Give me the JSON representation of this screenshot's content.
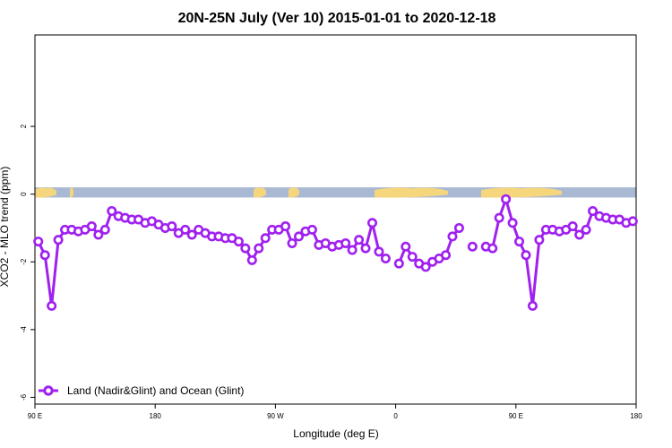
{
  "colors": {
    "series": "#a020f0",
    "ocean_band": "#a9b9d3",
    "land_band": "#f5d67c",
    "frame": "#000000"
  },
  "chart_data": {
    "type": "line",
    "title": "20N-25N July (Ver 10)   2015-01-01 to 2020-12-18",
    "xlabel": "Longitude (deg E)",
    "ylabel": "XCO2 - MLO trend (ppm)",
    "xlim": [
      90,
      450
    ],
    "ylim": [
      -6.2,
      4.7
    ],
    "x_ticks": [
      90,
      180,
      270,
      360,
      450
    ],
    "x_tick_labels": [
      "90 E",
      "180",
      "90 W",
      "0",
      "90 E",
      "180"
    ],
    "x_tick_values": [
      90,
      180,
      270,
      360,
      450,
      540
    ],
    "y_ticks": [
      2,
      0,
      -2,
      -4,
      -6
    ],
    "y_tick_labels": [
      "2",
      "0",
      "-2",
      "-4",
      "-6"
    ],
    "grid": false,
    "legend_position": "bottom-left",
    "background_band": {
      "y_from": 0.2,
      "y_to": -0.1,
      "note_ocean_land_map": true
    },
    "series": [
      {
        "name": "Land (Nadir&Glint) and Ocean (Glint)",
        "points": [
          [
            92.5,
            -1.4
          ],
          [
            97.5,
            -1.8
          ],
          [
            102.5,
            -3.3
          ],
          [
            107.5,
            -1.35
          ],
          [
            112.5,
            -1.05
          ],
          [
            117.5,
            -1.05
          ],
          [
            122.5,
            -1.1
          ],
          [
            127.5,
            -1.05
          ],
          [
            132.5,
            -0.95
          ],
          [
            137.5,
            -1.2
          ],
          [
            142.5,
            -1.05
          ],
          [
            147.5,
            -0.5
          ],
          [
            152.5,
            -0.65
          ],
          [
            157.5,
            -0.7
          ],
          [
            162.5,
            -0.75
          ],
          [
            167.5,
            -0.75
          ],
          [
            172.5,
            -0.85
          ],
          [
            177.5,
            -0.8
          ],
          [
            182.5,
            -0.9
          ],
          [
            187.5,
            -1.0
          ],
          [
            192.5,
            -0.95
          ],
          [
            197.5,
            -1.15
          ],
          [
            202.5,
            -1.05
          ],
          [
            207.5,
            -1.2
          ],
          [
            212.5,
            -1.05
          ],
          [
            217.5,
            -1.15
          ],
          [
            222.5,
            -1.25
          ],
          [
            227.5,
            -1.25
          ],
          [
            232.5,
            -1.3
          ],
          [
            237.5,
            -1.3
          ],
          [
            242.5,
            -1.4
          ],
          [
            247.5,
            -1.6
          ],
          [
            252.5,
            -1.95
          ],
          [
            257.5,
            -1.6
          ],
          [
            262.5,
            -1.3
          ],
          [
            267.5,
            -1.05
          ],
          [
            272.5,
            -1.05
          ],
          [
            277.5,
            -0.95
          ],
          [
            282.5,
            -1.45
          ],
          [
            287.5,
            -1.25
          ],
          [
            292.5,
            -1.1
          ],
          [
            297.5,
            -1.05
          ],
          [
            302.5,
            -1.5
          ],
          [
            307.5,
            -1.45
          ],
          [
            312.5,
            -1.55
          ],
          [
            317.5,
            -1.5
          ],
          [
            322.5,
            -1.45
          ],
          [
            327.5,
            -1.65
          ],
          [
            332.5,
            -1.35
          ],
          [
            337.5,
            -1.6
          ],
          [
            342.5,
            -0.85
          ],
          [
            347.5,
            -1.7
          ],
          [
            352.5,
            -1.9
          ],
          null,
          [
            362.5,
            -2.05
          ],
          [
            367.5,
            -1.55
          ],
          [
            372.5,
            -1.85
          ],
          [
            377.5,
            -2.05
          ],
          [
            382.5,
            -2.15
          ],
          [
            387.5,
            -2.0
          ],
          [
            392.5,
            -1.9
          ],
          [
            397.5,
            -1.8
          ],
          [
            402.5,
            -1.25
          ],
          [
            407.5,
            -1.0
          ],
          null,
          [
            417.5,
            -1.55
          ],
          null,
          [
            427.5,
            -1.55
          ],
          [
            432.5,
            -1.6
          ],
          [
            437.5,
            -0.7
          ],
          [
            442.5,
            -0.15
          ],
          [
            447.5,
            -0.85
          ],
          [
            452.5,
            -1.4
          ],
          [
            457.5,
            -1.8
          ],
          [
            462.5,
            -3.3
          ],
          [
            467.5,
            -1.35
          ],
          [
            472.5,
            -1.05
          ],
          [
            477.5,
            -1.05
          ],
          [
            482.5,
            -1.1
          ],
          [
            487.5,
            -1.05
          ],
          [
            492.5,
            -0.95
          ],
          [
            497.5,
            -1.2
          ],
          [
            502.5,
            -1.05
          ],
          [
            507.5,
            -0.5
          ],
          [
            512.5,
            -0.65
          ],
          [
            517.5,
            -0.7
          ],
          [
            522.5,
            -0.75
          ],
          [
            527.5,
            -0.75
          ],
          [
            532.5,
            -0.85
          ],
          [
            537.5,
            -0.8
          ]
        ]
      }
    ]
  }
}
